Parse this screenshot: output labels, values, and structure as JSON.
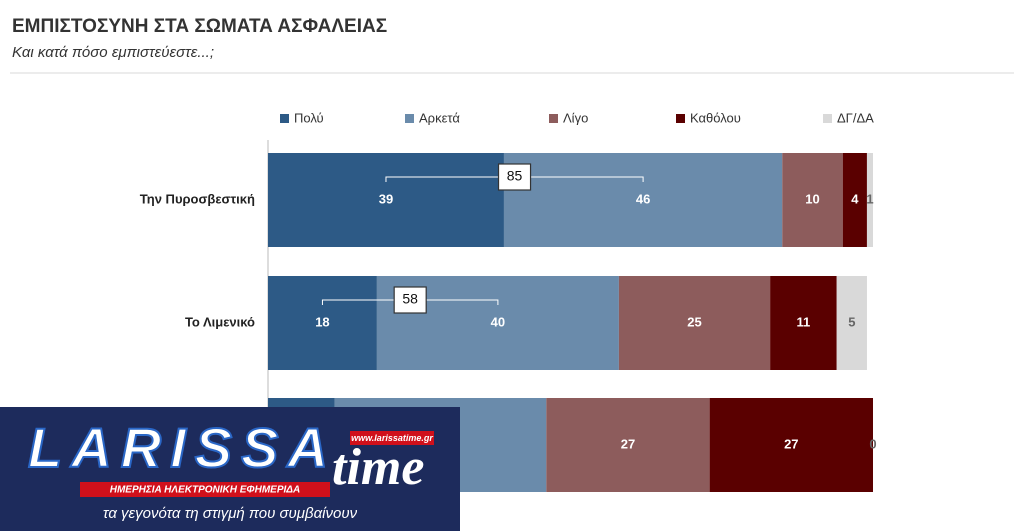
{
  "chart_data": {
    "type": "stacked-bar-horizontal",
    "title": "ΕΜΠΙΣΤΟΣΥΝΗ ΣΤΑ ΣΩΜΑΤΑ ΑΣΦΑΛΕΙΑΣ",
    "subtitle": "Και κατά πόσο εμπιστεύεστε...;",
    "categories": [
      "Την Πυροσβεστική",
      "Το Λιμενικό",
      null
    ],
    "series": [
      {
        "name": "Πολύ",
        "color": "#2d5a86",
        "values": [
          39,
          18,
          11
        ]
      },
      {
        "name": "Αρκετά",
        "color": "#6a8bab",
        "values": [
          46,
          40,
          35
        ]
      },
      {
        "name": "Λίγο",
        "color": "#8d5c5c",
        "values": [
          10,
          25,
          27
        ]
      },
      {
        "name": "Καθόλου",
        "color": "#5a0000",
        "values": [
          4,
          11,
          27
        ]
      },
      {
        "name": "ΔΓ/ΔΑ",
        "color": "#d9d9d9",
        "values": [
          1,
          5,
          0
        ]
      }
    ],
    "totals": [
      85,
      58
    ],
    "xlim": [
      0,
      100
    ],
    "legend": "top"
  },
  "overlay": {
    "brand_1": "LARISSA",
    "brand_2": "time",
    "url": "www.larissatime.gr",
    "banner": "ΗΜΕΡΗΣΙΑ ΗΛΕΚΤΡΟΝΙΚΗ ΕΦΗΜΕΡΙΔΑ",
    "tagline": "τα γεγονότα τη στιγμή που συμβαίνουν"
  }
}
